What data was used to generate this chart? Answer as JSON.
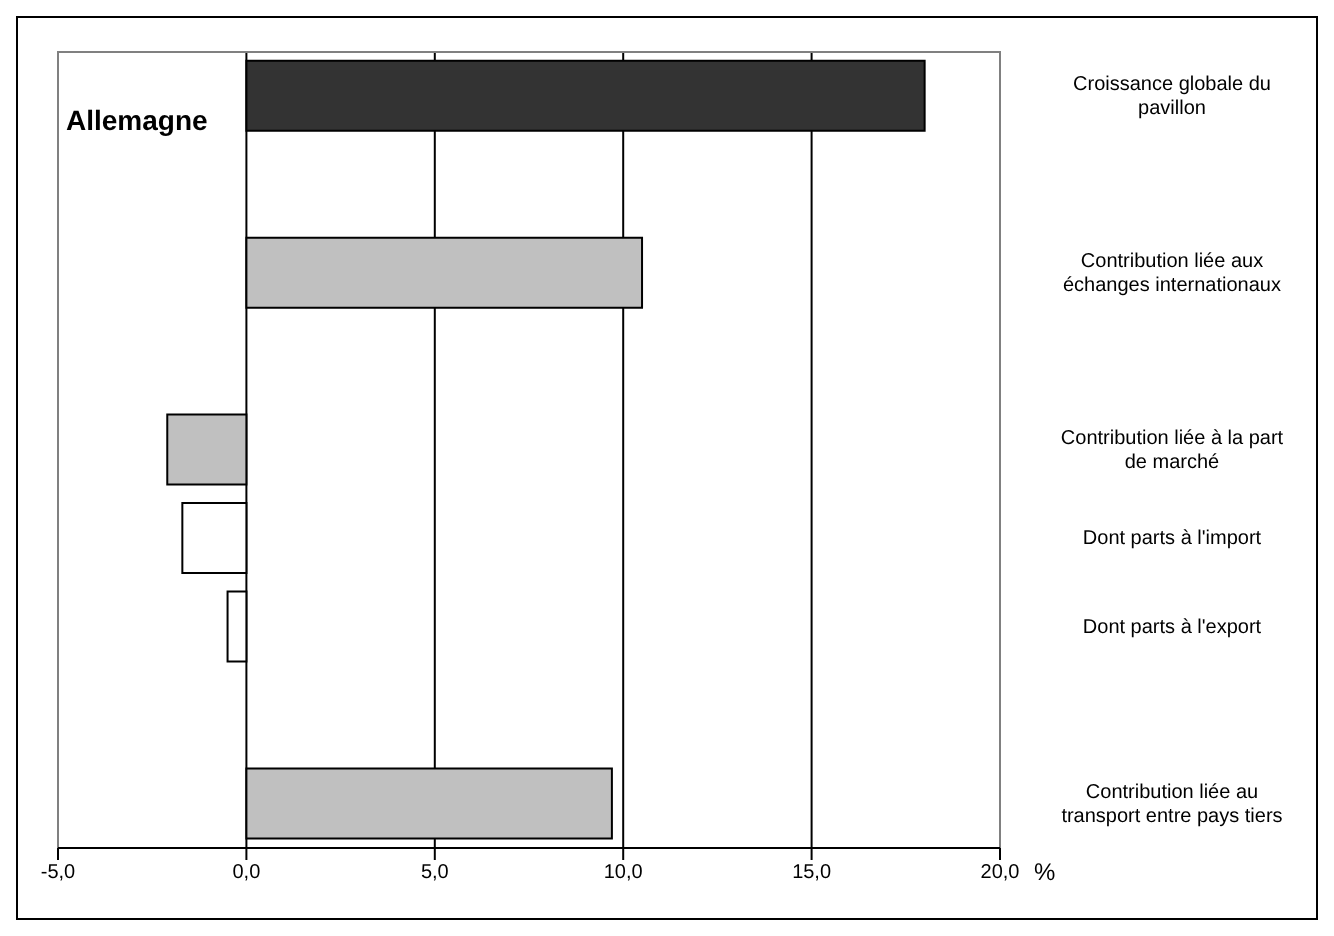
{
  "chart_data": {
    "type": "bar",
    "orientation": "horizontal",
    "title": "Allemagne",
    "xlabel": "%",
    "categories": [
      "Croissance globale du pavillon",
      null,
      "Contribution liée aux échanges internationaux",
      null,
      "Contribution liée à la part de marché",
      "Dont parts à l'import",
      "Dont parts à l'export",
      null,
      "Contribution liée au transport entre pays tiers"
    ],
    "values": [
      18.0,
      null,
      10.5,
      null,
      -2.1,
      -1.7,
      -0.5,
      null,
      9.7
    ],
    "colors": [
      "#333333",
      "#c0c0c0",
      "#c0c0c0",
      "#c0c0c0",
      "#c0c0c0",
      "#ffffff",
      "#ffffff",
      "#c0c0c0",
      "#c0c0c0"
    ],
    "xlim": [
      -5,
      20
    ],
    "xticks": [
      {
        "value": -5,
        "label": "-5,0"
      },
      {
        "value": 0,
        "label": "0,0"
      },
      {
        "value": 5,
        "label": "5,0"
      },
      {
        "value": 10,
        "label": "10,0"
      },
      {
        "value": 15,
        "label": "15,0"
      },
      {
        "value": 20,
        "label": "20,0"
      }
    ],
    "grid": "x",
    "legend": false
  }
}
